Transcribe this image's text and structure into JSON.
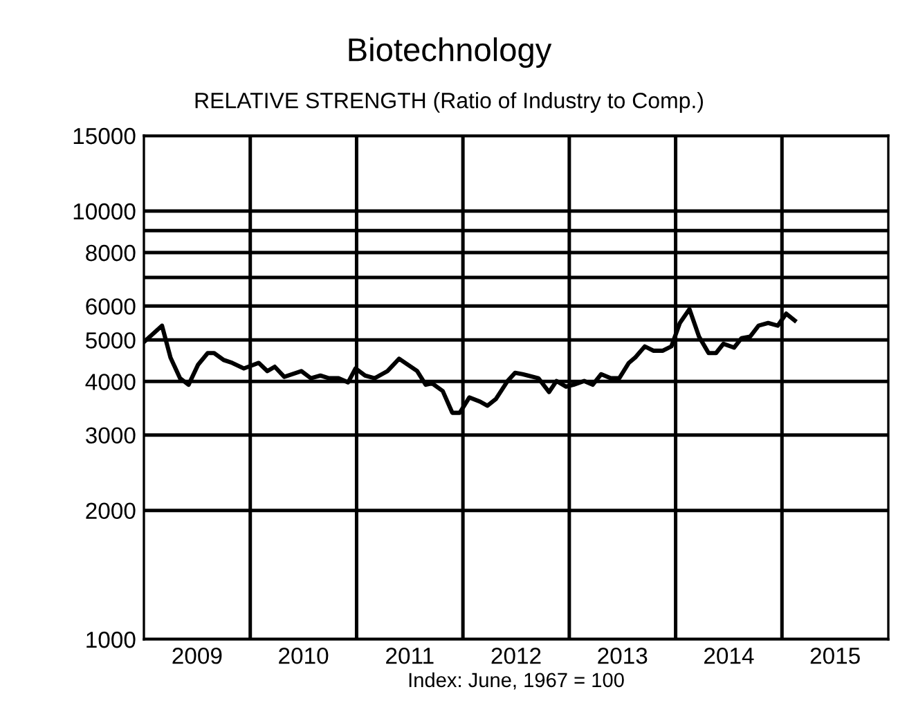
{
  "chart_data": {
    "type": "line",
    "title": "Biotechnology",
    "subtitle": "RELATIVE STRENGTH (Ratio of Industry to Comp.)",
    "xlabel": "Index: June, 1967 = 100",
    "log": "y",
    "grid": "xy",
    "line_style": "solid",
    "marker": "none",
    "xlim": [
      2009,
      2016
    ],
    "xticks": [
      {
        "value": 2009.5,
        "label": "2009"
      },
      {
        "value": 2010,
        "label": null
      },
      {
        "value": 2010.5,
        "label": "2010"
      },
      {
        "value": 2011,
        "label": null
      },
      {
        "value": 2011.5,
        "label": "2011"
      },
      {
        "value": 2012,
        "label": null
      },
      {
        "value": 2012.5,
        "label": "2012"
      },
      {
        "value": 2013,
        "label": null
      },
      {
        "value": 2013.5,
        "label": "2013"
      },
      {
        "value": 2014,
        "label": null
      },
      {
        "value": 2014.5,
        "label": "2014"
      },
      {
        "value": 2015,
        "label": null
      },
      {
        "value": 2015.5,
        "label": "2015"
      }
    ],
    "ylim": [
      1000,
      15000
    ],
    "yticks": [
      1000,
      2000,
      3000,
      4000,
      5000,
      6000,
      {
        "value": 7000,
        "label": null
      },
      8000,
      {
        "value": 9000,
        "label": null
      },
      10000,
      15000
    ],
    "series": [
      {
        "color": "#000000",
        "x": [
          2009.01,
          2009.17,
          2009.25,
          2009.34,
          2009.42,
          2009.51,
          2009.6,
          2009.66,
          2009.75,
          2009.83,
          2009.94,
          2010.08,
          2010.16,
          2010.23,
          2010.32,
          2010.48,
          2010.57,
          2010.66,
          2010.74,
          2010.83,
          2010.92,
          2010.99,
          2011.08,
          2011.17,
          2011.29,
          2011.4,
          2011.57,
          2011.65,
          2011.71,
          2011.81,
          2011.9,
          2011.97,
          2012.06,
          2012.16,
          2012.23,
          2012.31,
          2012.42,
          2012.49,
          2012.56,
          2012.71,
          2012.81,
          2012.88,
          2012.97,
          2013.04,
          2013.14,
          2013.22,
          2013.3,
          2013.39,
          2013.47,
          2013.56,
          2013.62,
          2013.71,
          2013.79,
          2013.88,
          2013.96,
          2014.04,
          2014.13,
          2014.22,
          2014.31,
          2014.38,
          2014.45,
          2014.55,
          2014.62,
          2014.7,
          2014.78,
          2014.87,
          2014.96,
          2015.04,
          2015.12
        ],
        "values": [
          4970,
          5400,
          4550,
          4070,
          3930,
          4380,
          4660,
          4660,
          4490,
          4420,
          4290,
          4420,
          4230,
          4330,
          4100,
          4230,
          4070,
          4130,
          4070,
          4070,
          3980,
          4290,
          4130,
          4070,
          4230,
          4520,
          4230,
          3930,
          3960,
          3800,
          3380,
          3380,
          3670,
          3590,
          3510,
          3640,
          4010,
          4190,
          4160,
          4070,
          3780,
          4010,
          3890,
          3930,
          4010,
          3930,
          4160,
          4070,
          4070,
          4420,
          4550,
          4830,
          4720,
          4720,
          4830,
          5480,
          5900,
          5090,
          4660,
          4660,
          4900,
          4800,
          5050,
          5090,
          5400,
          5480,
          5400,
          5760,
          5550
        ]
      }
    ]
  }
}
